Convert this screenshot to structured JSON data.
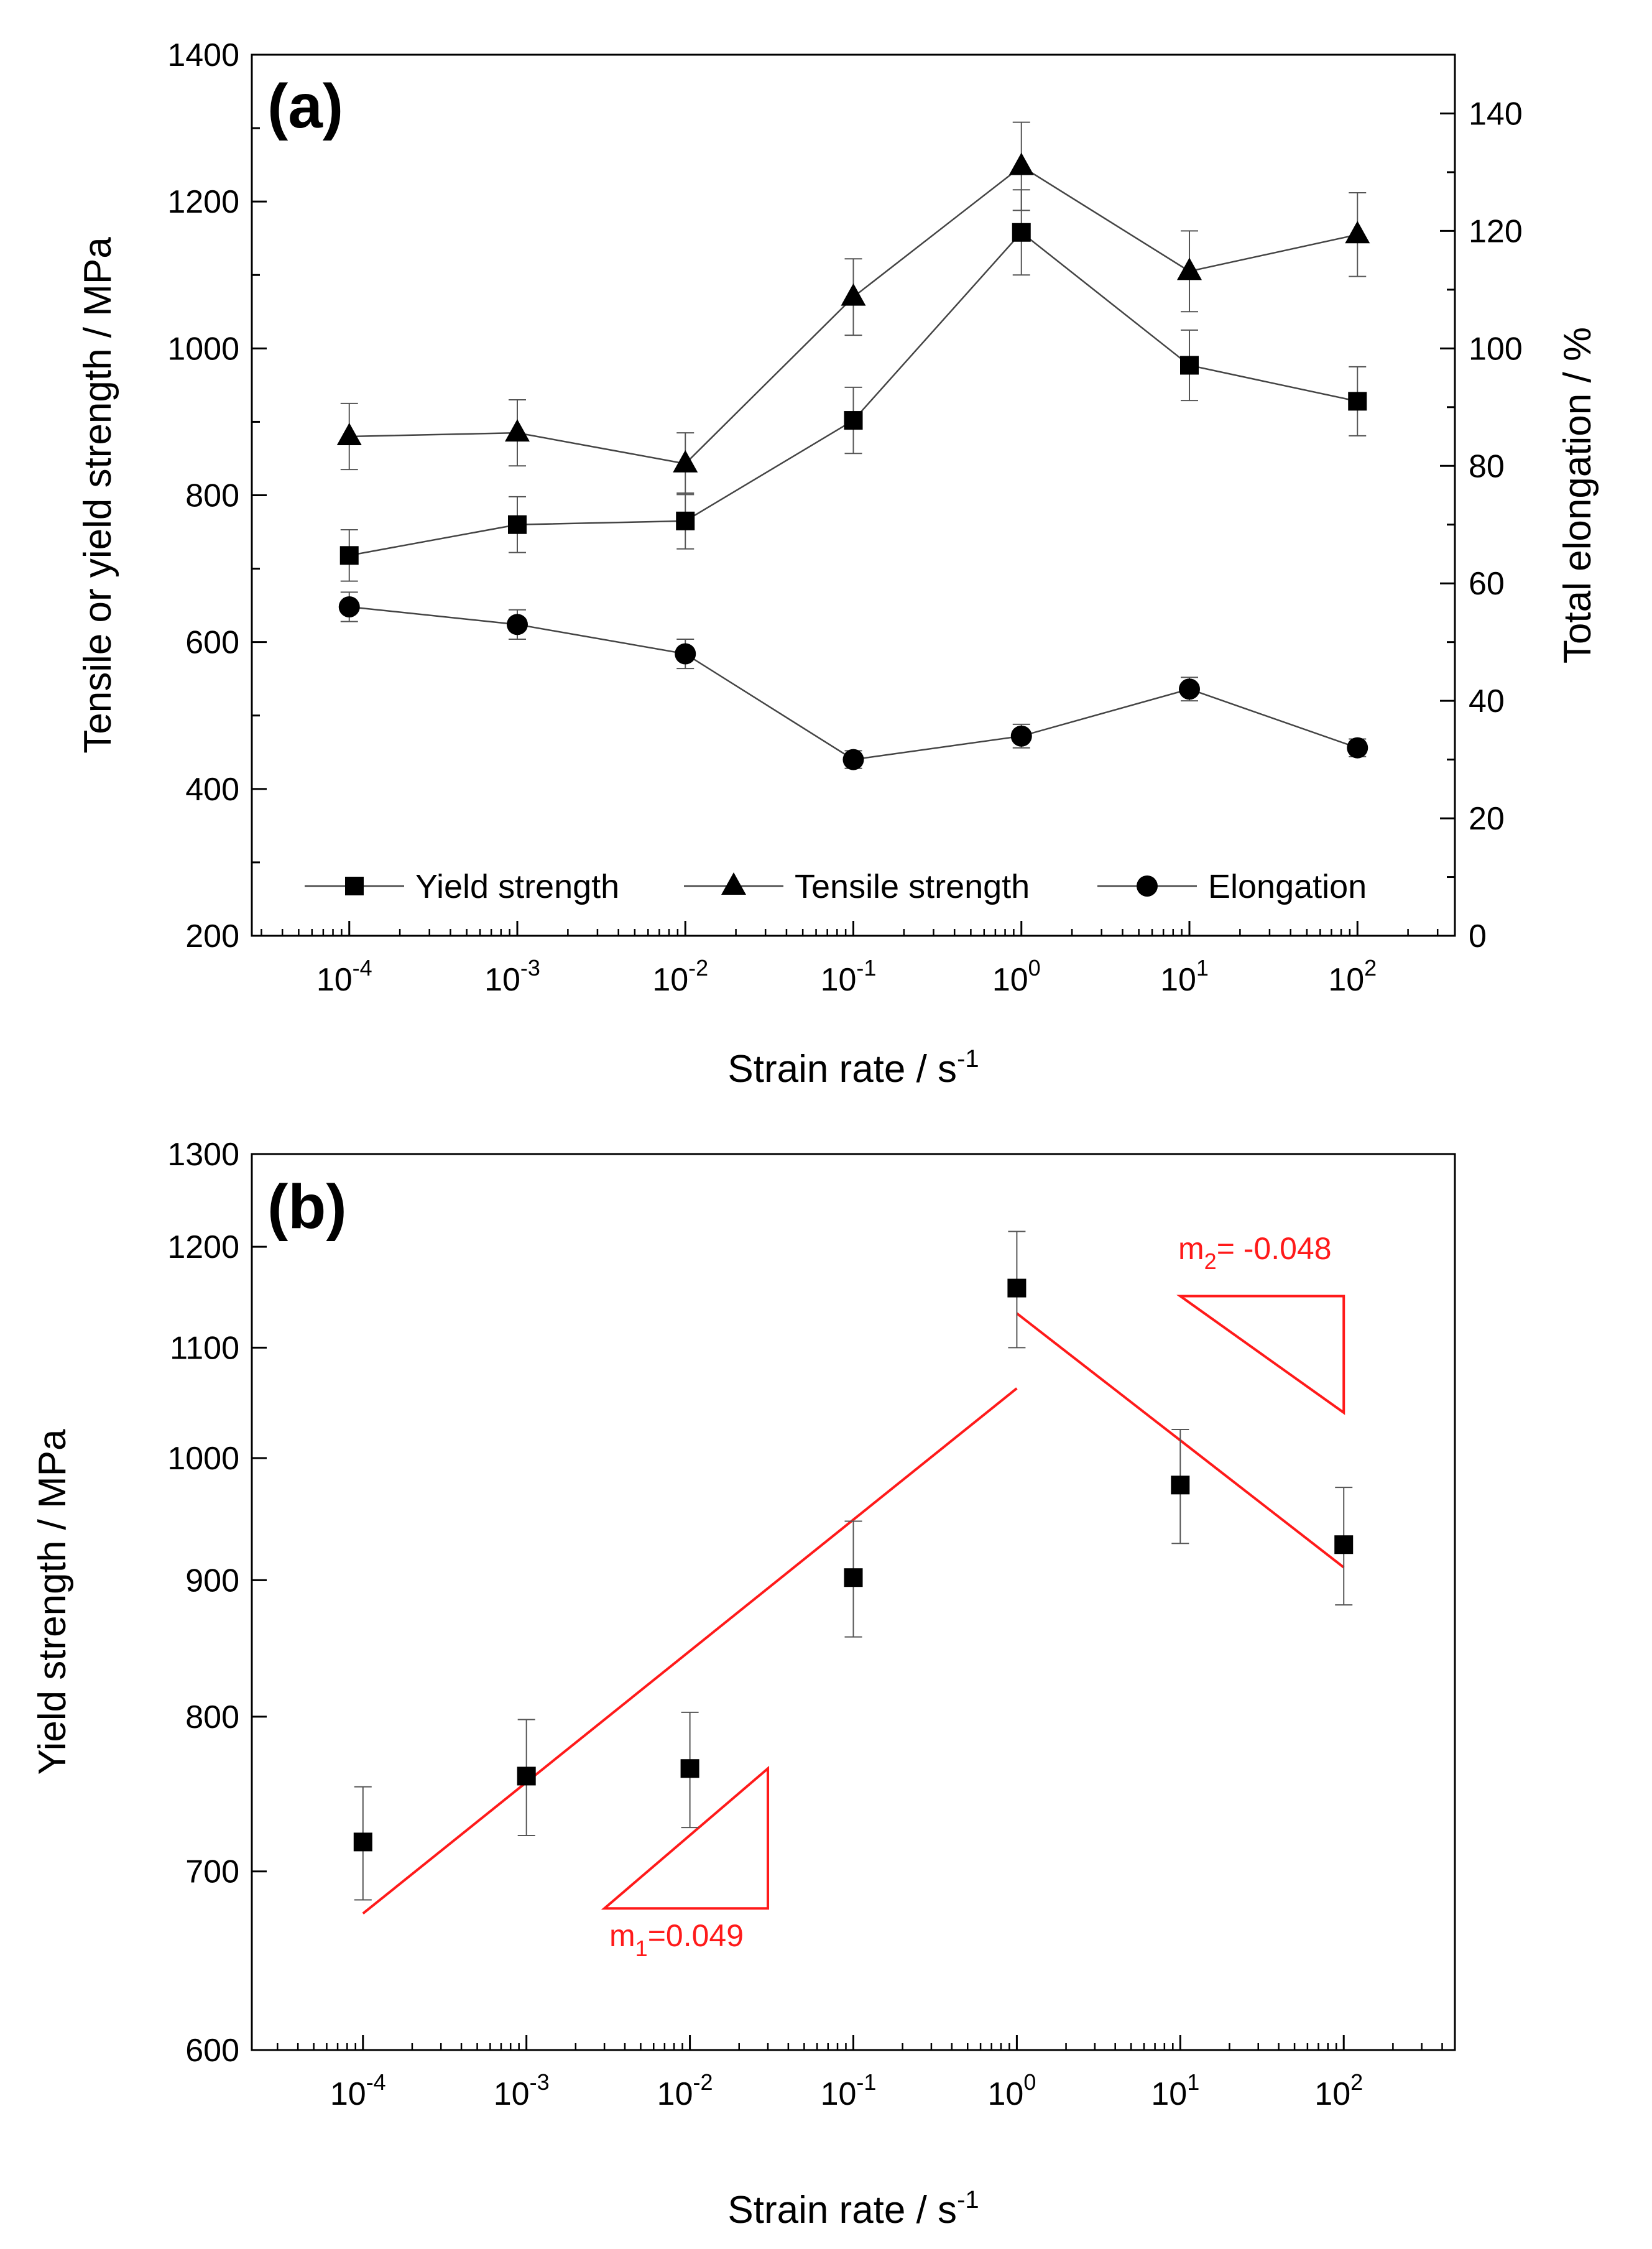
{
  "colors": {
    "fit_line": "#ff1a1a",
    "marker": "#000000",
    "axis": "#000000",
    "background": "#ffffff"
  },
  "chart_data": [
    {
      "panel": "(a)",
      "type": "line",
      "x": [
        0.0001,
        0.001,
        0.01,
        0.1,
        1,
        10,
        100
      ],
      "x_tick_labels": [
        {
          "base": "10",
          "exp": "-4"
        },
        {
          "base": "10",
          "exp": "-3"
        },
        {
          "base": "10",
          "exp": "-2"
        },
        {
          "base": "10",
          "exp": "-1"
        },
        {
          "base": "10",
          "exp": "0"
        },
        {
          "base": "10",
          "exp": "1"
        },
        {
          "base": "10",
          "exp": "2"
        }
      ],
      "xscale": "log",
      "xlim_log10": [
        -4.58,
        2.58
      ],
      "xlabel": {
        "main": "Strain rate / s",
        "exp": "-1"
      },
      "ylabel_left": "Tensile or yield strength / MPa",
      "ylim_left": [
        200,
        1400
      ],
      "yticks_left": [
        200,
        400,
        600,
        800,
        1000,
        1200,
        1400
      ],
      "ylabel_right": "Total elongation / %",
      "ylim_right": [
        0,
        150
      ],
      "yticks_right": [
        0,
        20,
        40,
        60,
        80,
        100,
        120,
        140
      ],
      "legend_position": "bottom",
      "series": [
        {
          "name": "Yield strength",
          "axis": "left",
          "marker": "square",
          "values": [
            718,
            760,
            765,
            902,
            1158,
            977,
            928
          ],
          "errors": [
            35,
            38,
            38,
            45,
            58,
            48,
            47
          ]
        },
        {
          "name": "Tensile strength",
          "axis": "left",
          "marker": "triangle",
          "values": [
            880,
            885,
            843,
            1070,
            1248,
            1105,
            1155
          ],
          "errors": [
            45,
            45,
            42,
            52,
            60,
            55,
            57
          ]
        },
        {
          "name": "Elongation",
          "axis": "right",
          "marker": "circle",
          "values": [
            56,
            53,
            48,
            30,
            34,
            42,
            32
          ],
          "errors": [
            2.5,
            2.5,
            2.5,
            1.5,
            2,
            2,
            1.5
          ]
        }
      ]
    },
    {
      "panel": "(b)",
      "type": "scatter",
      "x": [
        0.0001,
        0.001,
        0.01,
        0.1,
        1,
        10,
        100
      ],
      "x_tick_labels": [
        {
          "base": "10",
          "exp": "-4"
        },
        {
          "base": "10",
          "exp": "-3"
        },
        {
          "base": "10",
          "exp": "-2"
        },
        {
          "base": "10",
          "exp": "-1"
        },
        {
          "base": "10",
          "exp": "0"
        },
        {
          "base": "10",
          "exp": "1"
        },
        {
          "base": "10",
          "exp": "2"
        }
      ],
      "xscale": "log",
      "xlim_log10": [
        -4.68,
        2.68
      ],
      "xlabel": {
        "main": "Strain rate / s",
        "exp": "-1"
      },
      "ylabel": "Yield strength / MPa",
      "yscale": "log",
      "ylim": [
        600,
        1300
      ],
      "yticks": [
        600,
        700,
        800,
        900,
        1000,
        1100,
        1200,
        1300
      ],
      "series": [
        {
          "name": "Yield strength",
          "marker": "square",
          "values": [
            718,
            760,
            765,
            902,
            1158,
            977,
            928
          ],
          "errors": [
            35,
            38,
            38,
            45,
            58,
            48,
            47
          ]
        }
      ],
      "fit_lines": [
        {
          "x": [
            0.0001,
            1
          ],
          "y": [
            675,
            1062
          ],
          "slope_label": {
            "main": "m",
            "sub": "1",
            "value": "=0.049"
          },
          "triangle": {
            "x_start": 0.003,
            "x_end": 0.03,
            "y_low": 678,
            "y_high": 765
          }
        },
        {
          "x": [
            1,
            100
          ],
          "y": [
            1133,
            910
          ],
          "slope_label": {
            "main": "m",
            "sub": "2",
            "value": "= -0.048"
          },
          "triangle": {
            "x_start": 10,
            "x_end": 100,
            "y_high": 1150,
            "y_low": 1040
          }
        }
      ]
    }
  ]
}
